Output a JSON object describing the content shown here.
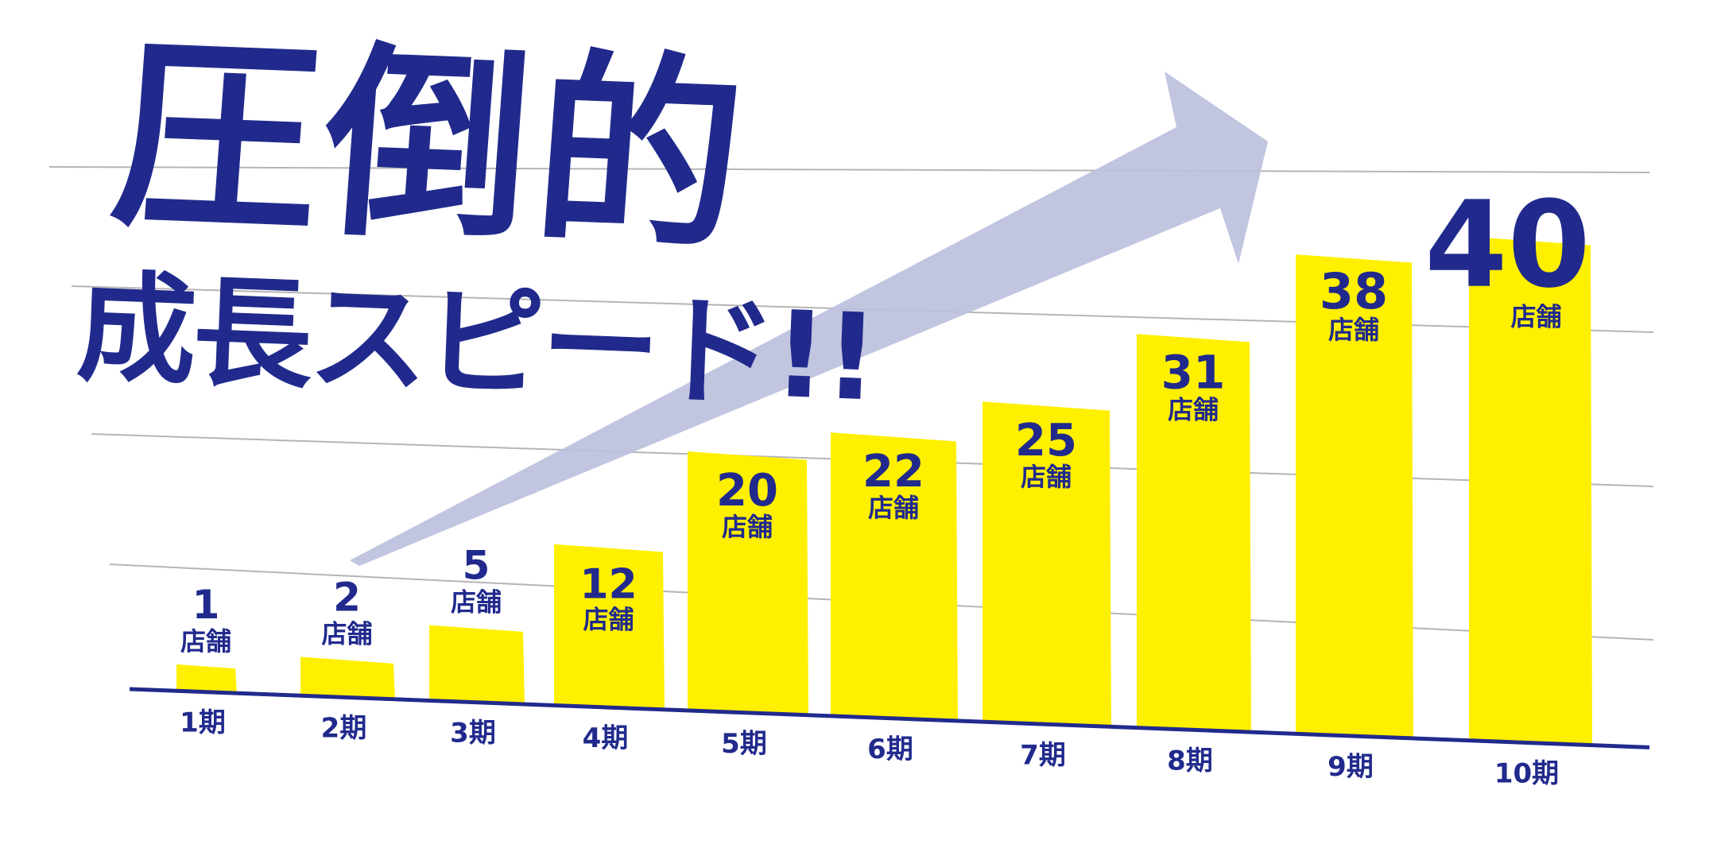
{
  "headline": {
    "line1": "圧倒的",
    "line2": "成長スピード!!"
  },
  "colors": {
    "bar": "#fff000",
    "text": "#212a8c",
    "arrow": "#bcc0dd",
    "grid": "#b5b5b5",
    "axis": "#212a8c"
  },
  "chart_data": {
    "type": "bar",
    "categories": [
      "1期",
      "2期",
      "3期",
      "4期",
      "5期",
      "6期",
      "7期",
      "8期",
      "9期",
      "10期"
    ],
    "series": [
      {
        "values": [
          1,
          2,
          5,
          12,
          20,
          22,
          25,
          31,
          38,
          40
        ]
      }
    ],
    "value_unit": "店舗",
    "ylim": [
      0,
      40
    ],
    "grid": true,
    "title": "",
    "xlabel": "",
    "ylabel": ""
  }
}
